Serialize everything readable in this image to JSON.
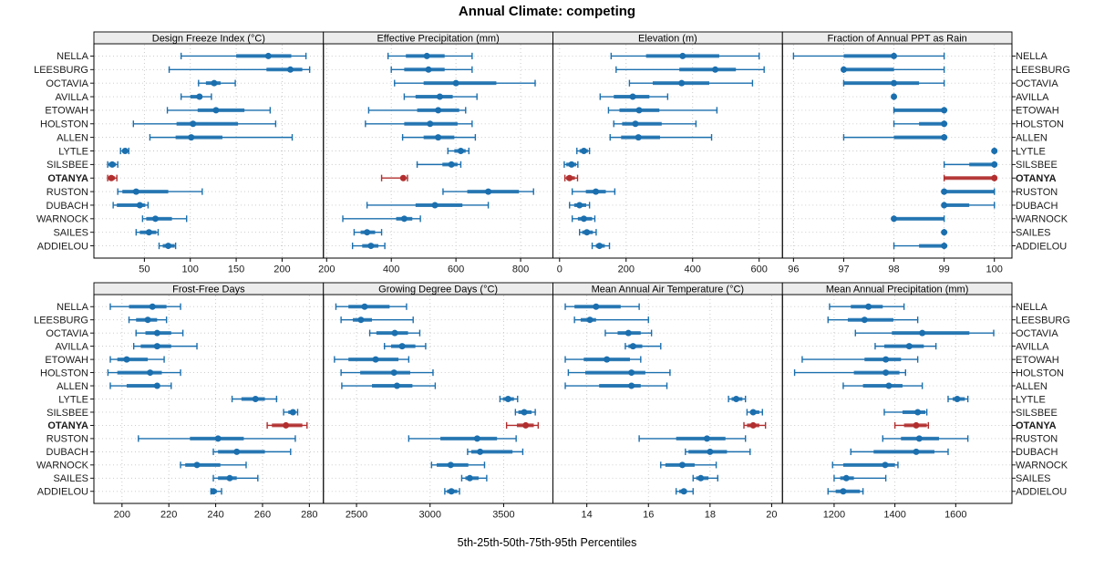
{
  "title": "Annual Climate: competing",
  "footer": "5th-25th-50th-75th-95th Percentiles",
  "colors": {
    "series_blue": "#1b6fae",
    "highlight_red": "#b22f2f",
    "strip_bg": "#ececec",
    "panel_border": "#000000",
    "grid_line": "#c6c6c6",
    "tick_text": "#1a1a1a",
    "station_text": "#1a1a1a"
  },
  "chart_data": {
    "type": "percentile-dotplot-trellis",
    "layout": {
      "grid_rows": 2,
      "grid_cols": 4,
      "legend": "none",
      "grid": "dotted"
    },
    "percentiles": [
      5,
      25,
      50,
      75,
      95
    ],
    "stations": [
      "NELLA",
      "LEESBURG",
      "OCTAVIA",
      "AVILLA",
      "ETOWAH",
      "HOLSTON",
      "ALLEN",
      "LYTLE",
      "SILSBEE",
      "OTANYA",
      "RUSTON",
      "DUBACH",
      "WARNOCK",
      "SAILES",
      "ADDIELOU"
    ],
    "highlight_station": "OTANYA",
    "panels": [
      {
        "title": "Design Freeze Index (°C)",
        "grid_row": 0,
        "grid_col": 0,
        "ticks": [
          50,
          100,
          150,
          200
        ],
        "xlim": [
          -5,
          245
        ],
        "values": [
          [
            90,
            150,
            185,
            210,
            226
          ],
          [
            77,
            183,
            209,
            222,
            230
          ],
          [
            109,
            117,
            126,
            133,
            149
          ],
          [
            90,
            100,
            110,
            113,
            123
          ],
          [
            75,
            108,
            128,
            159,
            187
          ],
          [
            38,
            85,
            103,
            152,
            193
          ],
          [
            56,
            84,
            101,
            135,
            211
          ],
          [
            24,
            26,
            29,
            31,
            33
          ],
          [
            10,
            11,
            15,
            19,
            21
          ],
          [
            10,
            11,
            14,
            18,
            20
          ],
          [
            21,
            26,
            41,
            76,
            113
          ],
          [
            16,
            20,
            45,
            51,
            54
          ],
          [
            48,
            52,
            62,
            80,
            96
          ],
          [
            41,
            45,
            55,
            63,
            65
          ],
          [
            66,
            70,
            76,
            83,
            84
          ]
        ]
      },
      {
        "title": "Effective Precipitation (mm)",
        "grid_row": 0,
        "grid_col": 1,
        "ticks": [
          200,
          400,
          600,
          800
        ],
        "xlim": [
          190,
          900
        ],
        "values": [
          [
            390,
            445,
            510,
            565,
            650
          ],
          [
            400,
            440,
            515,
            565,
            650
          ],
          [
            410,
            500,
            600,
            725,
            845
          ],
          [
            440,
            475,
            550,
            590,
            665
          ],
          [
            330,
            480,
            545,
            610,
            630
          ],
          [
            320,
            440,
            520,
            605,
            650
          ],
          [
            435,
            500,
            545,
            595,
            660
          ],
          [
            575,
            595,
            615,
            630,
            640
          ],
          [
            480,
            558,
            586,
            605,
            615
          ],
          [
            370,
            430,
            437,
            443,
            450
          ],
          [
            560,
            635,
            700,
            795,
            840
          ],
          [
            325,
            475,
            535,
            620,
            700
          ],
          [
            250,
            415,
            440,
            465,
            490
          ],
          [
            285,
            305,
            325,
            350,
            370
          ],
          [
            280,
            310,
            337,
            360,
            380
          ]
        ]
      },
      {
        "title": "Elevation (m)",
        "grid_row": 0,
        "grid_col": 2,
        "ticks": [
          0,
          200,
          400,
          600
        ],
        "xlim": [
          -20,
          670
        ],
        "values": [
          [
            155,
            260,
            370,
            480,
            600
          ],
          [
            170,
            360,
            468,
            530,
            615
          ],
          [
            210,
            280,
            367,
            450,
            580
          ],
          [
            122,
            163,
            220,
            270,
            325
          ],
          [
            147,
            180,
            239,
            300,
            473
          ],
          [
            163,
            188,
            228,
            307,
            410
          ],
          [
            152,
            185,
            237,
            302,
            457
          ],
          [
            52,
            60,
            73,
            85,
            90
          ],
          [
            14,
            20,
            36,
            50,
            55
          ],
          [
            16,
            20,
            30,
            46,
            54
          ],
          [
            38,
            79,
            109,
            139,
            166
          ],
          [
            30,
            44,
            60,
            80,
            90
          ],
          [
            38,
            55,
            73,
            98,
            106
          ],
          [
            60,
            68,
            82,
            100,
            110
          ],
          [
            98,
            109,
            120,
            136,
            150
          ]
        ]
      },
      {
        "title": "Fraction of Annual PPT as Rain",
        "grid_row": 0,
        "grid_col": 3,
        "ticks": [
          96,
          97,
          98,
          99,
          100
        ],
        "xlim": [
          95.78,
          100.35
        ],
        "values": [
          [
            96,
            97,
            98,
            98,
            99
          ],
          [
            97,
            97,
            97,
            98,
            99
          ],
          [
            97,
            97,
            98,
            98.5,
            99
          ],
          [
            98,
            98,
            98,
            98,
            98
          ],
          [
            98,
            98,
            99,
            99,
            99
          ],
          [
            98,
            98.5,
            99,
            99,
            99
          ],
          [
            97,
            98,
            99,
            99,
            99
          ],
          [
            100,
            100,
            100,
            100,
            100
          ],
          [
            99,
            99.5,
            100,
            100,
            100
          ],
          [
            99,
            99,
            100,
            100,
            100
          ],
          [
            99,
            99,
            99,
            100,
            100
          ],
          [
            99,
            99,
            99,
            99.5,
            100
          ],
          [
            98,
            98,
            98,
            99,
            99
          ],
          [
            99,
            99,
            99,
            99,
            99
          ],
          [
            98,
            98.5,
            99,
            99,
            99
          ]
        ]
      },
      {
        "title": "Frost-Free Days",
        "grid_row": 1,
        "grid_col": 0,
        "ticks": [
          200,
          220,
          240,
          260,
          280
        ],
        "xlim": [
          188,
          286
        ],
        "values": [
          [
            195,
            203,
            213,
            219,
            225
          ],
          [
            203,
            206,
            211,
            215,
            219
          ],
          [
            206,
            210,
            215,
            221,
            226
          ],
          [
            205,
            208,
            215,
            221,
            232
          ],
          [
            195,
            198,
            202,
            211,
            218
          ],
          [
            194,
            198,
            212,
            217,
            225
          ],
          [
            195,
            202,
            215,
            216,
            221
          ],
          [
            247,
            251,
            257,
            261,
            266
          ],
          [
            269,
            271,
            273,
            274,
            275
          ],
          [
            262,
            264,
            270,
            277,
            279
          ],
          [
            207,
            229,
            241,
            252,
            274
          ],
          [
            239,
            241,
            249,
            261,
            272
          ],
          [
            225,
            227,
            232,
            242,
            253
          ],
          [
            239,
            241,
            246,
            249,
            258
          ],
          [
            238,
            238.5,
            239,
            240.5,
            242.5
          ]
        ]
      },
      {
        "title": "Growing Degree Days (°C)",
        "grid_row": 1,
        "grid_col": 1,
        "ticks": [
          2500,
          3000,
          3500
        ],
        "xlim": [
          2275,
          3835
        ],
        "values": [
          [
            2360,
            2445,
            2555,
            2725,
            2840
          ],
          [
            2395,
            2475,
            2530,
            2605,
            2885
          ],
          [
            2590,
            2635,
            2760,
            2850,
            2930
          ],
          [
            2690,
            2735,
            2810,
            2900,
            2970
          ],
          [
            2350,
            2445,
            2630,
            2785,
            2855
          ],
          [
            2395,
            2525,
            2755,
            2865,
            3020
          ],
          [
            2400,
            2605,
            2775,
            2880,
            3035
          ],
          [
            3475,
            3495,
            3530,
            3570,
            3595
          ],
          [
            3580,
            3600,
            3640,
            3690,
            3715
          ],
          [
            3520,
            3590,
            3650,
            3705,
            3735
          ],
          [
            2855,
            3070,
            3320,
            3455,
            3585
          ],
          [
            3255,
            3280,
            3340,
            3560,
            3630
          ],
          [
            3010,
            3045,
            3140,
            3260,
            3370
          ],
          [
            3215,
            3240,
            3270,
            3330,
            3385
          ],
          [
            3100,
            3115,
            3145,
            3185,
            3200
          ]
        ]
      },
      {
        "title": "Mean Annual Air Temperature (°C)",
        "grid_row": 1,
        "grid_col": 2,
        "ticks": [
          14,
          16,
          18,
          20
        ],
        "xlim": [
          12.9,
          20.35
        ],
        "values": [
          [
            13.3,
            13.6,
            14.3,
            15.1,
            15.7
          ],
          [
            13.6,
            13.8,
            14.1,
            14.3,
            16.0
          ],
          [
            14.6,
            15.0,
            15.35,
            15.75,
            16.1
          ],
          [
            15.25,
            15.35,
            15.5,
            15.8,
            16.4
          ],
          [
            13.3,
            13.9,
            14.65,
            15.4,
            15.75
          ],
          [
            13.4,
            13.95,
            15.45,
            15.9,
            16.7
          ],
          [
            13.3,
            14.4,
            15.45,
            15.75,
            16.6
          ],
          [
            18.6,
            18.7,
            18.85,
            19.05,
            19.15
          ],
          [
            19.2,
            19.3,
            19.4,
            19.6,
            19.7
          ],
          [
            19.1,
            19.2,
            19.4,
            19.6,
            19.8
          ],
          [
            15.7,
            16.9,
            17.9,
            18.5,
            19.15
          ],
          [
            17.2,
            17.3,
            18.0,
            18.55,
            19.3
          ],
          [
            16.4,
            16.55,
            17.1,
            17.5,
            18.2
          ],
          [
            17.45,
            17.55,
            17.7,
            17.95,
            18.25
          ],
          [
            16.9,
            17.0,
            17.15,
            17.25,
            17.45
          ]
        ]
      },
      {
        "title": "Mean Annual Precipitation (mm)",
        "grid_row": 1,
        "grid_col": 3,
        "ticks": [
          1200,
          1400,
          1600
        ],
        "xlim": [
          1030,
          1785
        ],
        "values": [
          [
            1185,
            1255,
            1313,
            1360,
            1430
          ],
          [
            1180,
            1245,
            1300,
            1395,
            1475
          ],
          [
            1270,
            1390,
            1490,
            1645,
            1725
          ],
          [
            1335,
            1365,
            1447,
            1495,
            1535
          ],
          [
            1095,
            1300,
            1370,
            1420,
            1475
          ],
          [
            1070,
            1265,
            1370,
            1415,
            1435
          ],
          [
            1230,
            1295,
            1380,
            1425,
            1490
          ],
          [
            1575,
            1590,
            1605,
            1630,
            1640
          ],
          [
            1365,
            1425,
            1475,
            1500,
            1505
          ],
          [
            1400,
            1430,
            1470,
            1505,
            1510
          ],
          [
            1360,
            1420,
            1480,
            1545,
            1640
          ],
          [
            1255,
            1330,
            1470,
            1530,
            1575
          ],
          [
            1195,
            1230,
            1368,
            1400,
            1410
          ],
          [
            1200,
            1220,
            1240,
            1265,
            1370
          ],
          [
            1180,
            1205,
            1230,
            1285,
            1295
          ]
        ]
      }
    ]
  }
}
